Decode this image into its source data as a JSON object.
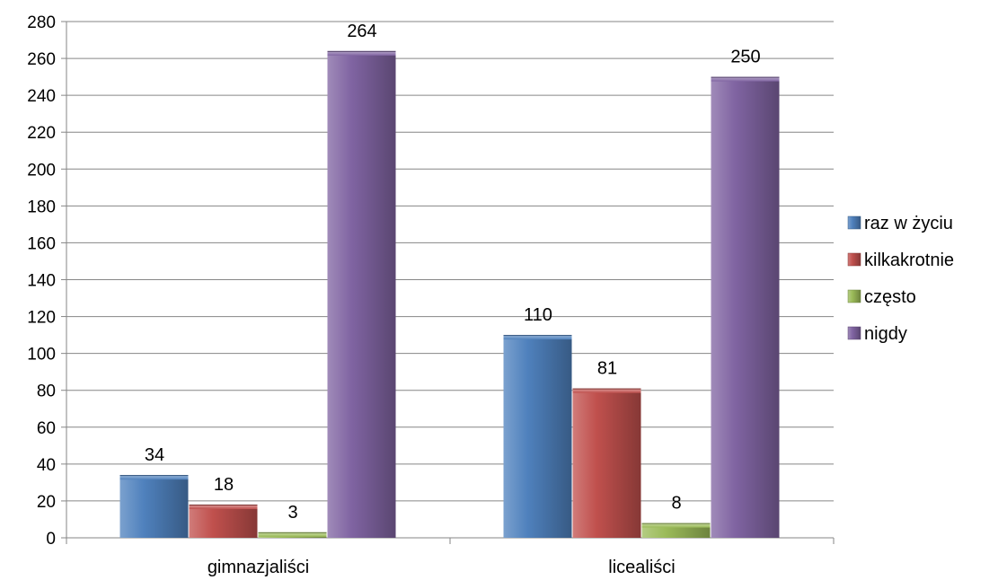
{
  "chart_data": {
    "type": "bar",
    "categories": [
      "gimnazjaliści",
      "licealiści"
    ],
    "series": [
      {
        "name": "raz w życiu",
        "values": [
          34,
          110
        ],
        "color": "#4f81bd"
      },
      {
        "name": "kilkakrotnie",
        "values": [
          18,
          81
        ],
        "color": "#c0504d"
      },
      {
        "name": "często",
        "values": [
          3,
          8
        ],
        "color": "#9bbb59"
      },
      {
        "name": "nigdy",
        "values": [
          264,
          250
        ],
        "color": "#8064a2"
      }
    ],
    "title": "",
    "xlabel": "",
    "ylabel": "",
    "ylim": [
      0,
      280
    ],
    "yticks": [
      0,
      20,
      40,
      60,
      80,
      100,
      120,
      140,
      160,
      180,
      200,
      220,
      240,
      260,
      280
    ],
    "grid": true,
    "legend_position": "right",
    "data_labels": true
  }
}
